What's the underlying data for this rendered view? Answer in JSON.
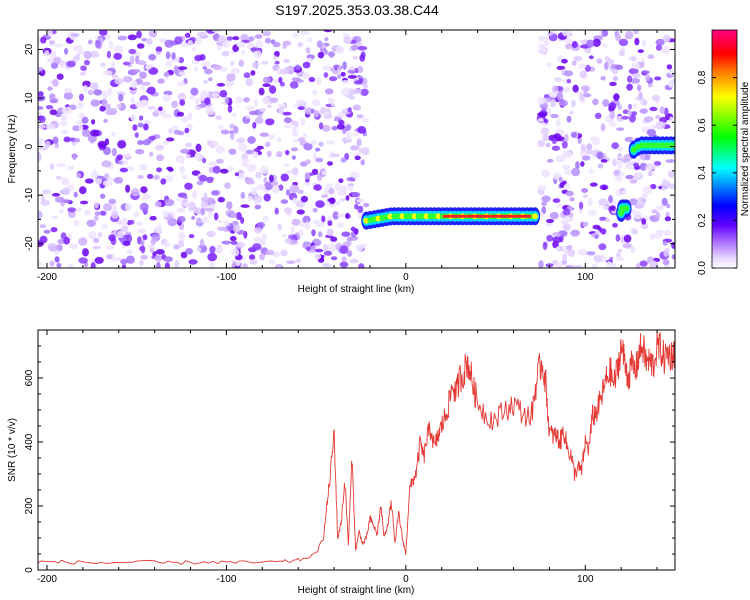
{
  "title": "S197.2025.353.03.38.C44",
  "chart_data": [
    {
      "type": "heatmap",
      "xlabel": "Height of straight line (km)",
      "ylabel": "Frequency (Hz)",
      "xlim": [
        -205,
        150
      ],
      "ylim": [
        -25,
        24
      ],
      "xticks": [
        -200,
        -100,
        0,
        100
      ],
      "yticks": [
        -20,
        -10,
        0,
        10,
        20
      ],
      "colorbar": {
        "label": "Normalized spectral amplitude",
        "range": [
          0,
          1
        ],
        "ticks": [
          "0.0",
          "0.2",
          "0.4",
          "0.6",
          "0.8"
        ],
        "colors": [
          "#ffffff",
          "#d0b0ff",
          "#7f00ff",
          "#0000ff",
          "#00ffff",
          "#00ff00",
          "#ffff00",
          "#ff8000",
          "#ff0000",
          "#ff00a0"
        ]
      },
      "noise_regions": [
        {
          "x": [
            -205,
            -22
          ],
          "freq": [
            -25,
            24
          ]
        },
        {
          "x": [
            75,
            118
          ],
          "freq": [
            -25,
            24
          ]
        },
        {
          "x": [
            118,
            123
          ],
          "freq": [
            -25,
            24
          ]
        },
        {
          "x": [
            123,
            150
          ],
          "freq": [
            -25,
            24
          ]
        }
      ],
      "tone_segments": [
        {
          "x": [
            -22,
            72
          ],
          "freq": [
            -15.5,
            -13.2
          ],
          "peak": 0.85
        },
        {
          "x": [
            120,
            123
          ],
          "freq": [
            -13,
            -12.5
          ],
          "peak": 0.45
        },
        {
          "x": [
            127,
            150
          ],
          "freq": [
            -1,
            1.5
          ],
          "peak": 0.6
        }
      ]
    },
    {
      "type": "line",
      "xlabel": "Height of straight line (km)",
      "ylabel": "SNR (10 * v/v)",
      "xlim": [
        -205,
        150
      ],
      "ylim": [
        0,
        750
      ],
      "xticks": [
        -200,
        -100,
        0,
        100
      ],
      "yticks": [
        0,
        200,
        400,
        600
      ],
      "color": "#e53935",
      "x": [
        -205,
        -190,
        -170,
        -150,
        -130,
        -110,
        -90,
        -70,
        -60,
        -50,
        -46,
        -44,
        -42,
        -40,
        -38,
        -36,
        -34,
        -32,
        -30,
        -28,
        -26,
        -24,
        -22,
        -20,
        -18,
        -16,
        -14,
        -12,
        -10,
        -8,
        -6,
        -4,
        -2,
        0,
        2,
        4,
        6,
        8,
        10,
        12,
        14,
        16,
        18,
        20,
        22,
        24,
        26,
        28,
        30,
        32,
        34,
        36,
        38,
        40,
        45,
        50,
        55,
        60,
        65,
        70,
        72,
        74,
        76,
        78,
        80,
        82,
        84,
        86,
        88,
        90,
        92,
        94,
        96,
        98,
        100,
        102,
        104,
        106,
        108,
        110,
        112,
        114,
        116,
        118,
        120,
        122,
        124,
        126,
        128,
        130,
        132,
        134,
        136,
        138,
        140,
        142,
        144,
        146,
        148,
        150
      ],
      "y": [
        25,
        25,
        22,
        25,
        22,
        25,
        23,
        25,
        30,
        50,
        100,
        200,
        300,
        430,
        100,
        150,
        280,
        80,
        350,
        60,
        120,
        80,
        100,
        160,
        140,
        110,
        200,
        100,
        150,
        210,
        80,
        180,
        100,
        50,
        250,
        280,
        310,
        400,
        350,
        420,
        440,
        380,
        420,
        450,
        480,
        520,
        580,
        550,
        600,
        610,
        650,
        620,
        560,
        530,
        480,
        470,
        500,
        520,
        490,
        480,
        560,
        620,
        650,
        580,
        430,
        420,
        420,
        400,
        440,
        380,
        360,
        300,
        320,
        310,
        400,
        380,
        480,
        490,
        520,
        560,
        600,
        620,
        580,
        630,
        700,
        650,
        600,
        640,
        620,
        680,
        700,
        650,
        650,
        640,
        700,
        690,
        660,
        680,
        670,
        690
      ]
    }
  ]
}
